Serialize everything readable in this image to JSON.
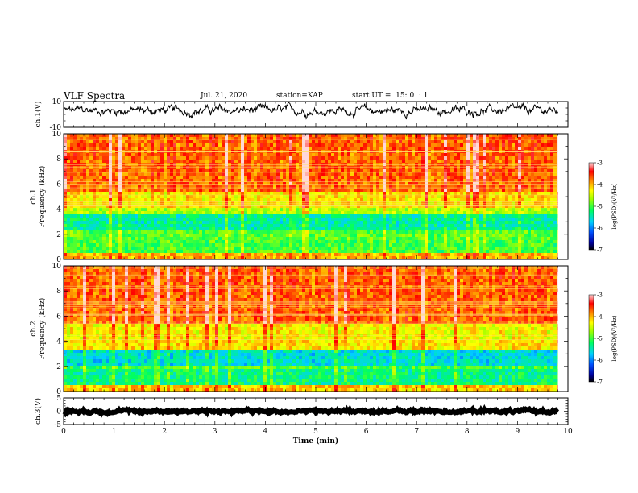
{
  "header": {
    "title": "VLF Spectra",
    "date": "Jul. 21, 2020",
    "station": "station=KAP",
    "start": "start UT =  15: 0  : 1"
  },
  "chart_data": [
    {
      "type": "line",
      "name": "ch1-waveform",
      "ylabel": "ch.1(V)",
      "ylim": [
        -10,
        10
      ],
      "yticks": [
        -10,
        10
      ],
      "xlim": [
        0,
        10
      ],
      "data_xlim": [
        0,
        9.8
      ],
      "color": "#000000",
      "mean": 3,
      "noise": 3.5
    },
    {
      "type": "heatmap",
      "name": "ch1-spectrogram",
      "ylabel_top": "ch.1",
      "ylabel": "Frequency (kHz)",
      "ylim": [
        0,
        10
      ],
      "yticks": [
        0,
        2,
        4,
        6,
        8,
        10
      ],
      "xlim": [
        0,
        10
      ],
      "data_xlim": [
        0,
        9.8
      ],
      "colorbar": {
        "label": "log(PSD)(V²/Hz)",
        "range": [
          -7,
          -3
        ],
        "ticks": [
          -3,
          -4,
          -5,
          -6,
          -7
        ]
      },
      "bands": [
        {
          "f": [
            0,
            0.6
          ],
          "level": -4.0
        },
        {
          "f": [
            0.6,
            1.5
          ],
          "level": -5.0
        },
        {
          "f": [
            1.5,
            2.2
          ],
          "level": -4.9
        },
        {
          "f": [
            2.2,
            3.6
          ],
          "level": -5.4
        },
        {
          "f": [
            3.6,
            4.2
          ],
          "level": -4.6
        },
        {
          "f": [
            4.2,
            5.5
          ],
          "level": -4.2
        },
        {
          "f": [
            5.5,
            10
          ],
          "level": -3.7
        }
      ]
    },
    {
      "type": "heatmap",
      "name": "ch2-spectrogram",
      "ylabel_top": "ch.2",
      "ylabel": "Frequency (kHz)",
      "ylim": [
        0,
        10
      ],
      "yticks": [
        0,
        2,
        4,
        6,
        8,
        10
      ],
      "xlim": [
        0,
        10
      ],
      "data_xlim": [
        0,
        9.8
      ],
      "colorbar": {
        "label": "log(PSD)(V²/Hz)",
        "range": [
          -7,
          -3
        ],
        "ticks": [
          -3,
          -4,
          -5,
          -6,
          -7
        ]
      },
      "bands": [
        {
          "f": [
            0,
            0.5
          ],
          "level": -4.1
        },
        {
          "f": [
            0.5,
            1.8
          ],
          "level": -5.3
        },
        {
          "f": [
            1.8,
            2.1
          ],
          "level": -5.0
        },
        {
          "f": [
            2.1,
            3.3
          ],
          "level": -5.6
        },
        {
          "f": [
            3.3,
            4.2
          ],
          "level": -4.2
        },
        {
          "f": [
            4.2,
            5.5
          ],
          "level": -4.3
        },
        {
          "f": [
            5.5,
            10
          ],
          "level": -3.7
        }
      ]
    },
    {
      "type": "line",
      "name": "ch3-waveform",
      "ylabel": "ch.3(V)",
      "ylim": [
        -5,
        5
      ],
      "yticks": [
        -5,
        0,
        5
      ],
      "xlim": [
        0,
        10
      ],
      "data_xlim": [
        0,
        9.8
      ],
      "xlabel": "Time (min)",
      "xticks": [
        0,
        1,
        2,
        3,
        4,
        5,
        6,
        7,
        8,
        9,
        10
      ],
      "color": "#000000",
      "mean": 0,
      "noise": 0.5
    }
  ]
}
